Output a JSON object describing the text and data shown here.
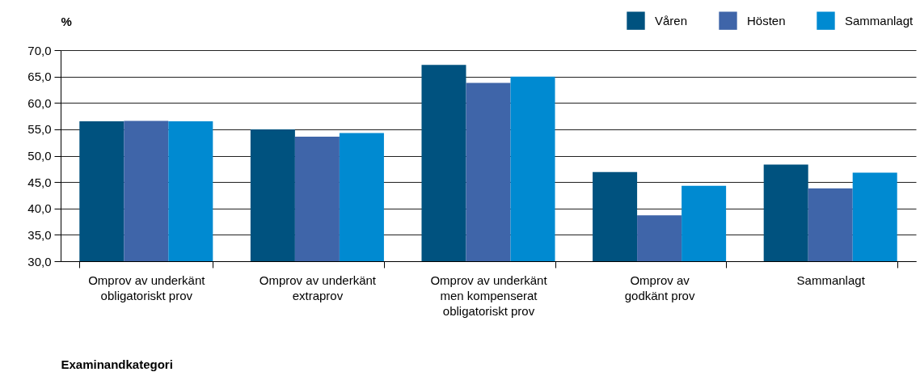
{
  "chart_data": {
    "type": "bar",
    "xlabel": "Examinandkategori",
    "ylabel": "%",
    "categories": [
      "Omprov av underkänt\nobligatoriskt prov",
      "Omprov av underkänt\nextraprov",
      "Omprov av underkänt\nmen kompenserat\nobligatoriskt prov",
      "Omprov av\ngodkänt prov",
      "Sammanlagt"
    ],
    "series": [
      {
        "name": "Våren",
        "color": "#00527f",
        "values": [
          56.5,
          55.0,
          67.2,
          46.9,
          48.3
        ]
      },
      {
        "name": "Hösten",
        "color": "#3f65a9",
        "values": [
          56.6,
          53.6,
          63.8,
          38.7,
          43.8
        ]
      },
      {
        "name": "Sammanlagt",
        "color": "#008ad1",
        "values": [
          56.5,
          54.3,
          65.0,
          44.3,
          46.8
        ]
      }
    ],
    "ylim": [
      30,
      70
    ],
    "yticks": [
      {
        "value": 30,
        "label": "30,0"
      },
      {
        "value": 35,
        "label": "35,0"
      },
      {
        "value": 40,
        "label": "40,0"
      },
      {
        "value": 45,
        "label": "45,0"
      },
      {
        "value": 50,
        "label": "50,0"
      },
      {
        "value": 55,
        "label": "55,0"
      },
      {
        "value": 60,
        "label": "60,0"
      },
      {
        "value": 65,
        "label": "65,0"
      },
      {
        "value": 70,
        "label": "70,0"
      }
    ],
    "grid": "y",
    "legend": "top right"
  }
}
